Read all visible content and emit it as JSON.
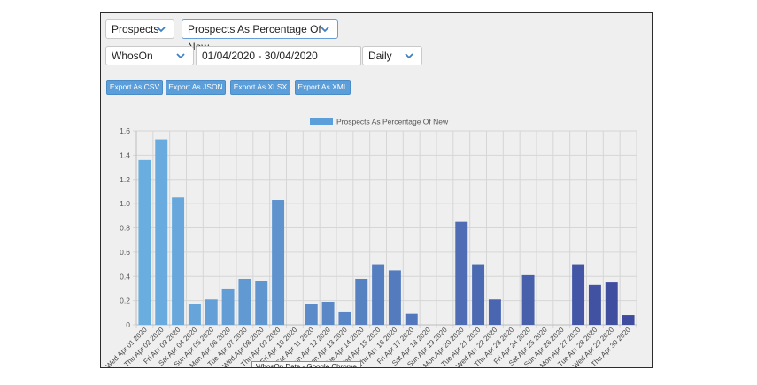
{
  "controls": {
    "metric_group": "Prospects",
    "metric": "Prospects As Percentage Of New",
    "site": "WhosOn",
    "date_range": "01/04/2020 - 30/04/2020",
    "granularity": "Daily"
  },
  "export_buttons": [
    "Export As CSV",
    "Export As JSON",
    "Export As XLSX",
    "Export As XML"
  ],
  "tooltip": "WhosOn Data - Google Chrome",
  "icons": {
    "dropdown": "chevron-down-icon"
  },
  "colors": {
    "accent": "#5b9ed9",
    "bar_start": "#6aaee0",
    "bar_end": "#3f4b9e"
  },
  "chart_data": {
    "type": "bar",
    "legend": "Prospects As Percentage Of New",
    "legend_position": "top",
    "grid": true,
    "ylim": [
      0,
      1.6
    ],
    "yticks": [
      "0",
      "0.2",
      "0.4",
      "0.6",
      "0.8",
      "1.0",
      "1.2",
      "1.4",
      "1.6"
    ],
    "categories": [
      "Wed Apr 01 2020",
      "Thu Apr 02 2020",
      "Fri Apr 03 2020",
      "Sat Apr 04 2020",
      "Sun Apr 05 2020",
      "Mon Apr 06 2020",
      "Tue Apr 07 2020",
      "Wed Apr 08 2020",
      "Thu Apr 09 2020",
      "Fri Apr 10 2020",
      "Sat Apr 11 2020",
      "Sun Apr 12 2020",
      "Mon Apr 13 2020",
      "Tue Apr 14 2020",
      "Wed Apr 15 2020",
      "Thu Apr 16 2020",
      "Fri Apr 17 2020",
      "Sat Apr 18 2020",
      "Sun Apr 19 2020",
      "Mon Apr 20 2020",
      "Tue Apr 21 2020",
      "Wed Apr 22 2020",
      "Thu Apr 23 2020",
      "Fri Apr 24 2020",
      "Sat Apr 25 2020",
      "Sun Apr 26 2020",
      "Mon Apr 27 2020",
      "Tue Apr 28 2020",
      "Wed Apr 29 2020",
      "Thu Apr 30 2020"
    ],
    "values": [
      1.36,
      1.53,
      1.05,
      0.17,
      0.21,
      0.3,
      0.38,
      0.36,
      1.03,
      0,
      0.17,
      0.19,
      0.11,
      0.38,
      0.5,
      0.45,
      0.09,
      0,
      0,
      0.85,
      0.5,
      0.21,
      0,
      0.41,
      0,
      0,
      0.5,
      0.33,
      0.35,
      0.08
    ]
  }
}
